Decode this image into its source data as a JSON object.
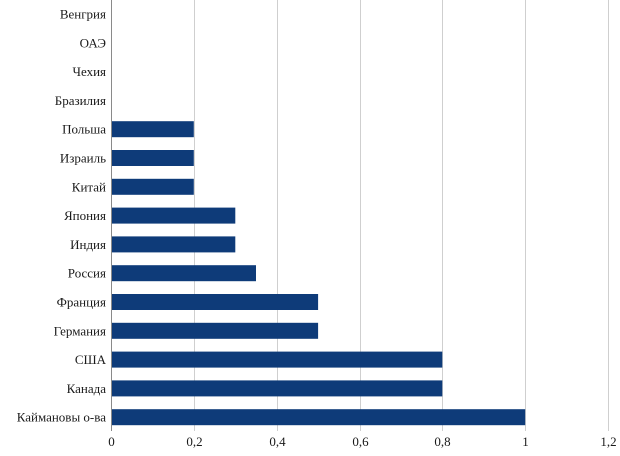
{
  "chart_data": {
    "type": "bar",
    "orientation": "horizontal",
    "categories": [
      "Венгрия",
      "ОАЭ",
      "Чехия",
      "Бразилия",
      "Польша",
      "Израиль",
      "Китай",
      "Япония",
      "Индия",
      "Россия",
      "Франция",
      "Германия",
      "США",
      "Канада",
      "Каймановы о-ва"
    ],
    "values": [
      0,
      0,
      0,
      0,
      0.2,
      0.2,
      0.2,
      0.3,
      0.3,
      0.35,
      0.5,
      0.5,
      0.8,
      0.8,
      1
    ],
    "xlim": [
      0,
      1.2
    ],
    "xticks": [
      "0",
      "0,2",
      "0,4",
      "0,6",
      "0,8",
      "1",
      "1,2"
    ],
    "grid": "vertical",
    "legend": "none",
    "colors": {
      "bar": "#0e3b79"
    }
  }
}
